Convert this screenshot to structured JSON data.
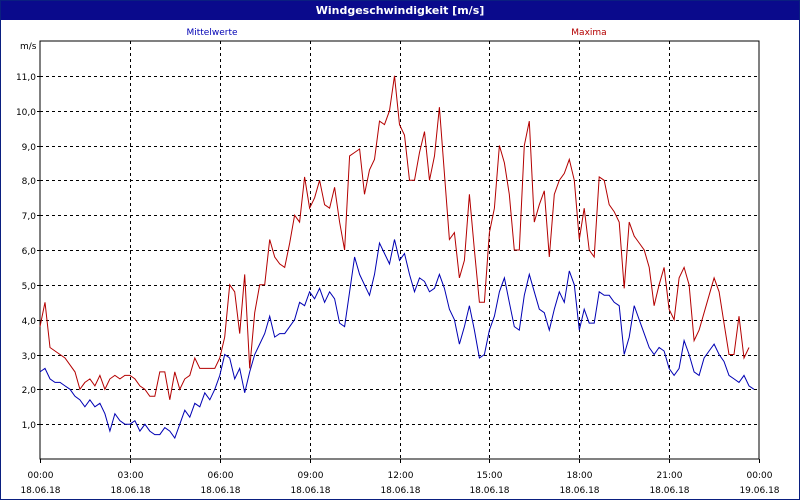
{
  "window": {
    "title": "Windgeschwindigkeit [m/s]"
  },
  "colors": {
    "mean": "#0000b4",
    "max": "#b40000",
    "grid": "#000000",
    "title_bg": "#0a0a8c"
  },
  "chart_data": {
    "type": "line",
    "title": "Windgeschwindigkeit [m/s]",
    "ylabel": "m/s",
    "ylim": [
      0,
      12
    ],
    "xlim": [
      "18.06.18 00:00",
      "19.06.18 00:00"
    ],
    "grid": true,
    "legend_position": "top",
    "y_ticks": [
      "1,0",
      "2,0",
      "3,0",
      "4,0",
      "5,0",
      "6,0",
      "7,0",
      "8,0",
      "9,0",
      "10,0",
      "11,0"
    ],
    "x_ticks": [
      {
        "time": "00:00",
        "date": "18.06.18"
      },
      {
        "time": "03:00",
        "date": "18.06.18"
      },
      {
        "time": "06:00",
        "date": "18.06.18"
      },
      {
        "time": "09:00",
        "date": "18.06.18"
      },
      {
        "time": "12:00",
        "date": "18.06.18"
      },
      {
        "time": "15:00",
        "date": "18.06.18"
      },
      {
        "time": "18:00",
        "date": "18.06.18"
      },
      {
        "time": "21:00",
        "date": "18.06.18"
      },
      {
        "time": "00:00",
        "date": "19.06.18"
      }
    ],
    "series": [
      {
        "name": "Mittelwerte",
        "points": [
          [
            "00:00",
            2.5
          ],
          [
            "00:10",
            2.6
          ],
          [
            "00:20",
            2.3
          ],
          [
            "00:30",
            2.2
          ],
          [
            "00:40",
            2.2
          ],
          [
            "00:50",
            2.1
          ],
          [
            "01:00",
            2.0
          ],
          [
            "01:10",
            1.8
          ],
          [
            "01:20",
            1.7
          ],
          [
            "01:30",
            1.5
          ],
          [
            "01:40",
            1.7
          ],
          [
            "01:50",
            1.5
          ],
          [
            "02:00",
            1.6
          ],
          [
            "02:10",
            1.3
          ],
          [
            "02:20",
            0.8
          ],
          [
            "02:30",
            1.3
          ],
          [
            "02:40",
            1.1
          ],
          [
            "02:50",
            1.0
          ],
          [
            "03:00",
            1.0
          ],
          [
            "03:10",
            1.1
          ],
          [
            "03:20",
            0.8
          ],
          [
            "03:30",
            1.0
          ],
          [
            "03:40",
            0.8
          ],
          [
            "03:50",
            0.7
          ],
          [
            "04:00",
            0.7
          ],
          [
            "04:10",
            0.9
          ],
          [
            "04:20",
            0.8
          ],
          [
            "04:30",
            0.6
          ],
          [
            "04:40",
            1.0
          ],
          [
            "04:50",
            1.4
          ],
          [
            "05:00",
            1.2
          ],
          [
            "05:10",
            1.6
          ],
          [
            "05:20",
            1.5
          ],
          [
            "05:30",
            1.9
          ],
          [
            "05:40",
            1.7
          ],
          [
            "05:50",
            2.0
          ],
          [
            "06:00",
            2.4
          ],
          [
            "06:10",
            3.0
          ],
          [
            "06:20",
            2.9
          ],
          [
            "06:30",
            2.3
          ],
          [
            "06:40",
            2.6
          ],
          [
            "06:50",
            1.9
          ],
          [
            "07:00",
            2.5
          ],
          [
            "07:10",
            3.0
          ],
          [
            "07:20",
            3.3
          ],
          [
            "07:30",
            3.6
          ],
          [
            "07:40",
            4.1
          ],
          [
            "07:50",
            3.5
          ],
          [
            "08:00",
            3.6
          ],
          [
            "08:10",
            3.6
          ],
          [
            "08:20",
            3.8
          ],
          [
            "08:30",
            4.0
          ],
          [
            "08:40",
            4.5
          ],
          [
            "08:50",
            4.4
          ],
          [
            "09:00",
            4.8
          ],
          [
            "09:10",
            4.6
          ],
          [
            "09:20",
            4.9
          ],
          [
            "09:30",
            4.5
          ],
          [
            "09:40",
            4.8
          ],
          [
            "09:50",
            4.6
          ],
          [
            "10:00",
            3.9
          ],
          [
            "10:10",
            3.8
          ],
          [
            "10:20",
            4.8
          ],
          [
            "10:30",
            5.8
          ],
          [
            "10:40",
            5.3
          ],
          [
            "10:50",
            5.0
          ],
          [
            "11:00",
            4.7
          ],
          [
            "11:10",
            5.3
          ],
          [
            "11:20",
            6.2
          ],
          [
            "11:30",
            5.9
          ],
          [
            "11:40",
            5.6
          ],
          [
            "11:50",
            6.3
          ],
          [
            "12:00",
            5.7
          ],
          [
            "12:10",
            5.9
          ],
          [
            "12:20",
            5.3
          ],
          [
            "12:30",
            4.8
          ],
          [
            "12:40",
            5.2
          ],
          [
            "12:50",
            5.1
          ],
          [
            "13:00",
            4.8
          ],
          [
            "13:10",
            4.9
          ],
          [
            "13:20",
            5.3
          ],
          [
            "13:30",
            4.9
          ],
          [
            "13:40",
            4.3
          ],
          [
            "13:50",
            4.0
          ],
          [
            "14:00",
            3.3
          ],
          [
            "14:10",
            3.8
          ],
          [
            "14:20",
            4.4
          ],
          [
            "14:30",
            3.7
          ],
          [
            "14:40",
            2.9
          ],
          [
            "14:50",
            3.0
          ],
          [
            "15:00",
            3.7
          ],
          [
            "15:10",
            4.1
          ],
          [
            "15:20",
            4.8
          ],
          [
            "15:30",
            5.2
          ],
          [
            "15:40",
            4.5
          ],
          [
            "15:50",
            3.8
          ],
          [
            "16:00",
            3.7
          ],
          [
            "16:10",
            4.7
          ],
          [
            "16:20",
            5.3
          ],
          [
            "16:30",
            4.8
          ],
          [
            "16:40",
            4.3
          ],
          [
            "16:50",
            4.2
          ],
          [
            "17:00",
            3.7
          ],
          [
            "17:10",
            4.3
          ],
          [
            "17:20",
            4.8
          ],
          [
            "17:30",
            4.5
          ],
          [
            "17:40",
            5.4
          ],
          [
            "17:50",
            5.0
          ],
          [
            "18:00",
            3.7
          ],
          [
            "18:10",
            4.3
          ],
          [
            "18:20",
            3.9
          ],
          [
            "18:30",
            3.9
          ],
          [
            "18:40",
            4.8
          ],
          [
            "18:50",
            4.7
          ],
          [
            "19:00",
            4.7
          ],
          [
            "19:10",
            4.5
          ],
          [
            "19:20",
            4.4
          ],
          [
            "19:30",
            3.0
          ],
          [
            "19:40",
            3.5
          ],
          [
            "19:50",
            4.4
          ],
          [
            "20:00",
            4.0
          ],
          [
            "20:10",
            3.6
          ],
          [
            "20:20",
            3.2
          ],
          [
            "20:30",
            3.0
          ],
          [
            "20:40",
            3.2
          ],
          [
            "20:50",
            3.1
          ],
          [
            "21:00",
            2.6
          ],
          [
            "21:10",
            2.4
          ],
          [
            "21:20",
            2.6
          ],
          [
            "21:30",
            3.4
          ],
          [
            "21:40",
            3.0
          ],
          [
            "21:50",
            2.5
          ],
          [
            "22:00",
            2.4
          ],
          [
            "22:10",
            2.9
          ],
          [
            "22:20",
            3.1
          ],
          [
            "22:30",
            3.3
          ],
          [
            "22:40",
            3.0
          ],
          [
            "22:50",
            2.8
          ],
          [
            "23:00",
            2.4
          ],
          [
            "23:10",
            2.3
          ],
          [
            "23:20",
            2.2
          ],
          [
            "23:30",
            2.4
          ],
          [
            "23:40",
            2.1
          ],
          [
            "23:50",
            2.0
          ]
        ]
      },
      {
        "name": "Maxima",
        "points": [
          [
            "00:00",
            3.8
          ],
          [
            "00:10",
            4.5
          ],
          [
            "00:20",
            3.2
          ],
          [
            "00:30",
            3.1
          ],
          [
            "00:40",
            3.0
          ],
          [
            "00:50",
            2.9
          ],
          [
            "01:00",
            2.7
          ],
          [
            "01:10",
            2.5
          ],
          [
            "01:20",
            2.0
          ],
          [
            "01:30",
            2.2
          ],
          [
            "01:40",
            2.3
          ],
          [
            "01:50",
            2.1
          ],
          [
            "02:00",
            2.4
          ],
          [
            "02:10",
            2.0
          ],
          [
            "02:20",
            2.3
          ],
          [
            "02:30",
            2.4
          ],
          [
            "02:40",
            2.3
          ],
          [
            "02:50",
            2.4
          ],
          [
            "03:00",
            2.4
          ],
          [
            "03:10",
            2.3
          ],
          [
            "03:20",
            2.1
          ],
          [
            "03:30",
            2.0
          ],
          [
            "03:40",
            1.8
          ],
          [
            "03:50",
            1.8
          ],
          [
            "04:00",
            2.5
          ],
          [
            "04:10",
            2.5
          ],
          [
            "04:20",
            1.7
          ],
          [
            "04:30",
            2.5
          ],
          [
            "04:40",
            2.0
          ],
          [
            "04:50",
            2.3
          ],
          [
            "05:00",
            2.4
          ],
          [
            "05:10",
            2.9
          ],
          [
            "05:20",
            2.6
          ],
          [
            "05:30",
            2.6
          ],
          [
            "05:40",
            2.6
          ],
          [
            "05:50",
            2.6
          ],
          [
            "06:00",
            2.9
          ],
          [
            "06:10",
            3.5
          ],
          [
            "06:20",
            5.0
          ],
          [
            "06:30",
            4.8
          ],
          [
            "06:40",
            3.6
          ],
          [
            "06:50",
            5.3
          ],
          [
            "07:00",
            2.6
          ],
          [
            "07:10",
            4.2
          ],
          [
            "07:20",
            5.0
          ],
          [
            "07:30",
            5.0
          ],
          [
            "07:40",
            6.3
          ],
          [
            "07:50",
            5.8
          ],
          [
            "08:00",
            5.6
          ],
          [
            "08:10",
            5.5
          ],
          [
            "08:20",
            6.2
          ],
          [
            "08:30",
            7.0
          ],
          [
            "08:40",
            6.8
          ],
          [
            "08:50",
            8.1
          ],
          [
            "09:00",
            7.2
          ],
          [
            "09:10",
            7.5
          ],
          [
            "09:20",
            8.0
          ],
          [
            "09:30",
            7.3
          ],
          [
            "09:40",
            7.2
          ],
          [
            "09:50",
            7.8
          ],
          [
            "10:00",
            6.8
          ],
          [
            "10:10",
            6.0
          ],
          [
            "10:20",
            8.7
          ],
          [
            "10:30",
            8.8
          ],
          [
            "10:40",
            8.9
          ],
          [
            "10:50",
            7.6
          ],
          [
            "11:00",
            8.3
          ],
          [
            "11:10",
            8.6
          ],
          [
            "11:20",
            9.7
          ],
          [
            "11:30",
            9.6
          ],
          [
            "11:40",
            10.0
          ],
          [
            "11:50",
            11.0
          ],
          [
            "12:00",
            9.6
          ],
          [
            "12:10",
            9.3
          ],
          [
            "12:20",
            8.0
          ],
          [
            "12:30",
            8.0
          ],
          [
            "12:40",
            8.8
          ],
          [
            "12:50",
            9.4
          ],
          [
            "13:00",
            8.0
          ],
          [
            "13:10",
            8.7
          ],
          [
            "13:20",
            10.1
          ],
          [
            "13:30",
            8.2
          ],
          [
            "13:40",
            6.3
          ],
          [
            "13:50",
            6.5
          ],
          [
            "14:00",
            5.2
          ],
          [
            "14:10",
            5.7
          ],
          [
            "14:20",
            7.6
          ],
          [
            "14:30",
            6.0
          ],
          [
            "14:40",
            4.5
          ],
          [
            "14:50",
            4.5
          ],
          [
            "15:00",
            6.5
          ],
          [
            "15:10",
            7.2
          ],
          [
            "15:20",
            9.0
          ],
          [
            "15:30",
            8.5
          ],
          [
            "15:40",
            7.6
          ],
          [
            "15:50",
            6.0
          ],
          [
            "16:00",
            6.0
          ],
          [
            "16:10",
            9.0
          ],
          [
            "16:20",
            9.7
          ],
          [
            "16:30",
            6.8
          ],
          [
            "16:40",
            7.3
          ],
          [
            "16:50",
            7.7
          ],
          [
            "17:00",
            5.8
          ],
          [
            "17:10",
            7.6
          ],
          [
            "17:20",
            8.0
          ],
          [
            "17:30",
            8.2
          ],
          [
            "17:40",
            8.6
          ],
          [
            "17:50",
            8.0
          ],
          [
            "18:00",
            6.3
          ],
          [
            "18:10",
            7.2
          ],
          [
            "18:20",
            6.0
          ],
          [
            "18:30",
            5.8
          ],
          [
            "18:40",
            8.1
          ],
          [
            "18:50",
            8.0
          ],
          [
            "19:00",
            7.3
          ],
          [
            "19:10",
            7.1
          ],
          [
            "19:20",
            6.8
          ],
          [
            "19:30",
            4.9
          ],
          [
            "19:40",
            6.8
          ],
          [
            "19:50",
            6.4
          ],
          [
            "20:00",
            6.2
          ],
          [
            "20:10",
            6.0
          ],
          [
            "20:20",
            5.5
          ],
          [
            "20:30",
            4.4
          ],
          [
            "20:40",
            5.0
          ],
          [
            "20:50",
            5.5
          ],
          [
            "21:00",
            4.3
          ],
          [
            "21:10",
            4.0
          ],
          [
            "21:20",
            5.2
          ],
          [
            "21:30",
            5.5
          ],
          [
            "21:40",
            5.0
          ],
          [
            "21:50",
            3.4
          ],
          [
            "22:00",
            3.7
          ],
          [
            "22:10",
            4.2
          ],
          [
            "22:20",
            4.7
          ],
          [
            "22:30",
            5.2
          ],
          [
            "22:40",
            4.8
          ],
          [
            "22:50",
            3.9
          ],
          [
            "23:00",
            3.0
          ],
          [
            "23:10",
            3.0
          ],
          [
            "23:20",
            4.1
          ],
          [
            "23:30",
            2.9
          ],
          [
            "23:40",
            3.2
          ]
        ]
      }
    ]
  }
}
